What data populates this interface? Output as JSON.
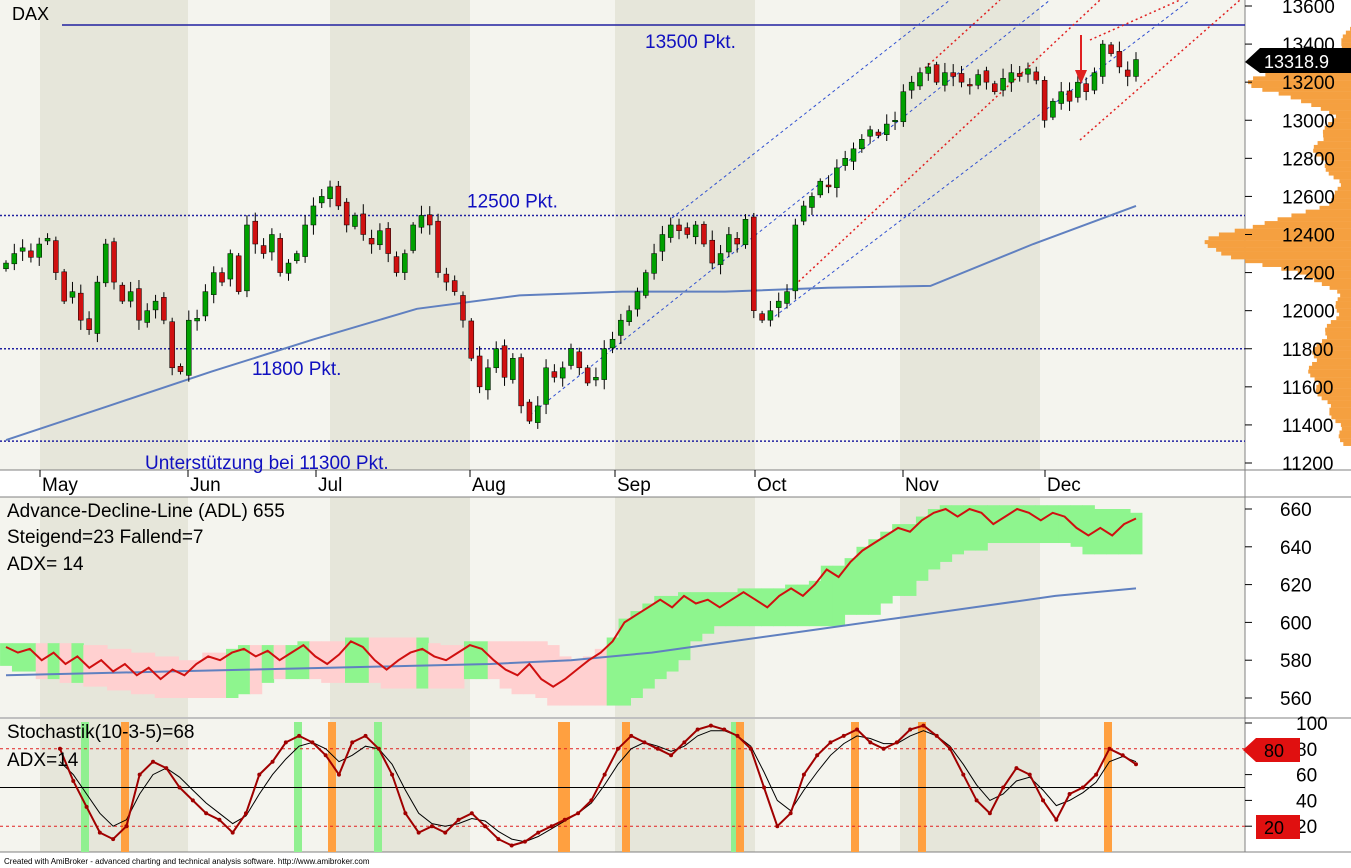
{
  "chart_data": [
    {
      "type": "candlestick",
      "title": "DAX",
      "ylim": [
        11200,
        13600
      ],
      "y_ticks": [
        11200,
        11400,
        11600,
        11800,
        12000,
        12200,
        12400,
        12600,
        12800,
        13000,
        13200,
        13400,
        13600
      ],
      "month_labels": [
        "May",
        "Jun",
        "Jul",
        "Aug",
        "Sep",
        "Oct",
        "Nov",
        "Dec"
      ],
      "last_value": "13318.9",
      "horizontal_levels": [
        {
          "value": 13500,
          "label": "13500 Pkt."
        },
        {
          "value": 12500,
          "label": "12500 Pkt."
        },
        {
          "value": 11800,
          "label": "11800 Pkt."
        },
        {
          "value": 11315,
          "label": "Unterstützung bei 11300 Pkt."
        }
      ],
      "close_series": [
        12250,
        12300,
        12330,
        12280,
        12350,
        12380,
        12200,
        12050,
        12100,
        11950,
        11900,
        12150,
        12350,
        12150,
        12050,
        12100,
        11950,
        12000,
        12050,
        11950,
        11700,
        11680,
        11950,
        11960,
        12100,
        12200,
        12150,
        12300,
        12100,
        12450,
        12350,
        12300,
        12400,
        12200,
        12250,
        12300,
        12450,
        12550,
        12600,
        12650,
        12550,
        12450,
        12500,
        12400,
        12350,
        12420,
        12300,
        12200,
        12300,
        12450,
        12500,
        12450,
        12200,
        12150,
        12100,
        11950,
        11750,
        11600,
        11700,
        11800,
        11650,
        11750,
        11500,
        11420,
        11500,
        11700,
        11650,
        11700,
        11800,
        11700,
        11620,
        11650,
        11800,
        11850,
        11950,
        12000,
        12100,
        12200,
        12300,
        12400,
        12450,
        12420,
        12400,
        12450,
        12350,
        12250,
        12300,
        12400,
        12350,
        12480,
        12000,
        11950,
        12000,
        12050,
        12100,
        12450,
        12550,
        12600,
        12680,
        12650,
        12750,
        12800,
        12850,
        12900,
        12950,
        12920,
        12980,
        13000,
        13150,
        13200,
        13250,
        13280,
        13200,
        13250,
        13230,
        13200,
        13180,
        13240,
        13200,
        13150,
        13220,
        13250,
        13230,
        13270,
        13210,
        13000,
        13100,
        13150,
        13100,
        13200,
        13150,
        13250,
        13400,
        13350,
        13280,
        13230,
        13318.9
      ],
      "sma_series": [
        11320,
        11500,
        11680,
        11850,
        12010,
        12080,
        12100,
        12100,
        12120,
        12130,
        12350,
        12550
      ],
      "volume_profile": "price-volume distribution on right axis"
    },
    {
      "type": "line",
      "title": "Advance-Decline-Line (ADL) 655",
      "subtitle_1": "Steigend=23  Fallend=7",
      "subtitle_2": "ADX= 14",
      "ylim": [
        550,
        665
      ],
      "y_ticks": [
        560,
        580,
        600,
        620,
        640,
        660
      ],
      "adl_series": [
        587,
        584,
        586,
        580,
        584,
        578,
        582,
        576,
        580,
        574,
        578,
        572,
        576,
        570,
        575,
        572,
        578,
        582,
        580,
        584,
        586,
        582,
        585,
        580,
        584,
        588,
        582,
        578,
        583,
        590,
        587,
        580,
        575,
        580,
        584,
        586,
        582,
        580,
        584,
        588,
        586,
        580,
        575,
        572,
        578,
        570,
        566,
        570,
        575,
        580,
        584,
        590,
        600,
        604,
        608,
        612,
        608,
        614,
        610,
        612,
        608,
        612,
        616,
        612,
        608,
        614,
        618,
        614,
        620,
        628,
        624,
        632,
        638,
        642,
        646,
        650,
        648,
        654,
        658,
        660,
        656,
        660,
        658,
        652,
        656,
        660,
        658,
        654,
        658,
        656,
        650,
        646,
        650,
        646,
        652,
        655
      ],
      "sma_series": [
        572,
        573,
        574,
        575,
        576,
        577,
        578,
        580,
        584,
        590,
        596,
        602,
        608,
        614,
        618
      ]
    },
    {
      "type": "line",
      "title": "Stochastik(10-3-5)=68",
      "subtitle": "ADX=14",
      "ylim": [
        0,
        100
      ],
      "y_ticks": [
        20,
        40,
        60,
        80,
        100
      ],
      "levels": [
        80,
        50,
        20
      ],
      "badge_high": "80",
      "badge_low": "20",
      "k_series": [
        80,
        55,
        35,
        15,
        10,
        20,
        60,
        70,
        65,
        50,
        40,
        30,
        25,
        15,
        30,
        60,
        70,
        85,
        90,
        85,
        75,
        60,
        85,
        90,
        80,
        60,
        30,
        15,
        20,
        15,
        25,
        30,
        20,
        10,
        5,
        8,
        15,
        20,
        25,
        30,
        40,
        60,
        80,
        90,
        85,
        80,
        75,
        85,
        95,
        98,
        95,
        90,
        80,
        50,
        20,
        30,
        60,
        75,
        85,
        90,
        95,
        85,
        80,
        85,
        95,
        98,
        90,
        80,
        60,
        40,
        30,
        50,
        65,
        60,
        40,
        25,
        45,
        50,
        60,
        80,
        75,
        68
      ],
      "d_series": [
        70,
        60,
        45,
        30,
        20,
        25,
        45,
        60,
        65,
        58,
        48,
        38,
        30,
        22,
        28,
        45,
        60,
        72,
        82,
        85,
        80,
        70,
        75,
        82,
        80,
        68,
        48,
        30,
        22,
        20,
        22,
        26,
        24,
        16,
        10,
        8,
        12,
        18,
        24,
        30,
        38,
        52,
        68,
        80,
        85,
        82,
        78,
        82,
        90,
        94,
        94,
        90,
        82,
        62,
        40,
        32,
        48,
        62,
        75,
        84,
        90,
        88,
        84,
        84,
        90,
        94,
        90,
        82,
        68,
        52,
        40,
        45,
        55,
        58,
        48,
        36,
        40,
        46,
        54,
        70,
        74,
        70
      ]
    }
  ],
  "footer": "Created with AmiBroker - advanced charting and technical analysis software. http://www.amibroker.com",
  "colors": {
    "up": "#00a000",
    "down": "#d01010",
    "sma": "#6080c0",
    "level": "#2020a0",
    "channel_blue": "#3050d0",
    "channel_red": "#e02020",
    "profile": "#f5a040",
    "adl_line": "#d01010",
    "cloud_green": "#8ef58e",
    "cloud_pink": "#ffd0d0",
    "stoch_k": "#a00000",
    "stoch_d": "#000000",
    "bar_green": "#90f090",
    "bar_orange": "#ffa040"
  }
}
